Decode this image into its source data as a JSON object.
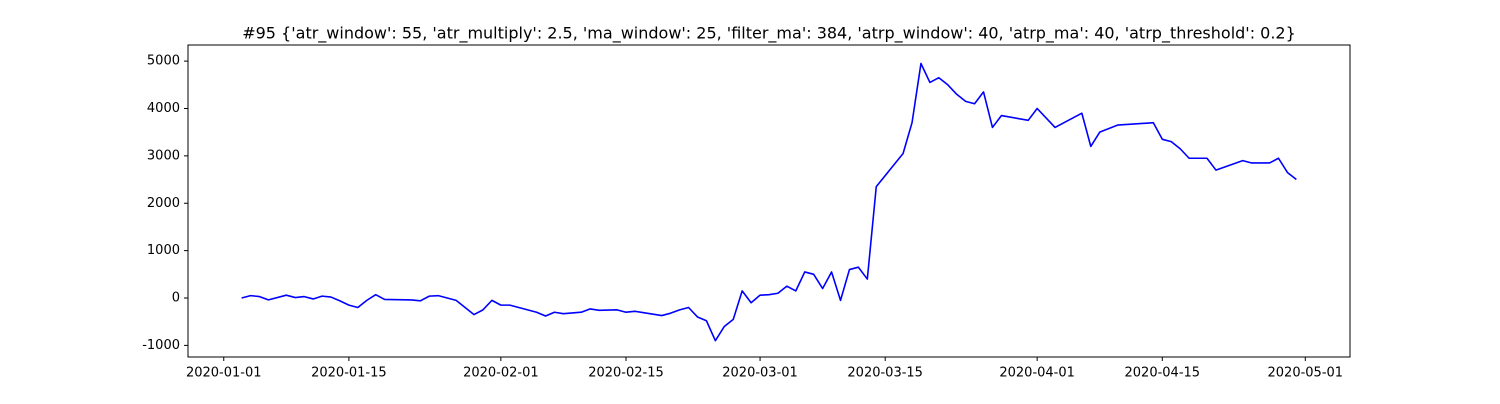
{
  "chart_data": {
    "type": "line",
    "title": "#95 {'atr_window': 55, 'atr_multiply': 2.5, 'ma_window': 25, 'filter_ma': 384, 'atrp_window': 40, 'atrp_ma': 40, 'atrp_threshold': 0.2}",
    "color": "#0000ff",
    "x": [
      "2020-01-03",
      "2020-01-04",
      "2020-01-05",
      "2020-01-06",
      "2020-01-08",
      "2020-01-09",
      "2020-01-10",
      "2020-01-11",
      "2020-01-12",
      "2020-01-13",
      "2020-01-14",
      "2020-01-15",
      "2020-01-16",
      "2020-01-17",
      "2020-01-18",
      "2020-01-19",
      "2020-01-22",
      "2020-01-23",
      "2020-01-24",
      "2020-01-25",
      "2020-01-26",
      "2020-01-27",
      "2020-01-28",
      "2020-01-29",
      "2020-01-30",
      "2020-01-31",
      "2020-02-01",
      "2020-02-02",
      "2020-02-05",
      "2020-02-06",
      "2020-02-07",
      "2020-02-08",
      "2020-02-10",
      "2020-02-11",
      "2020-02-12",
      "2020-02-14",
      "2020-02-15",
      "2020-02-16",
      "2020-02-19",
      "2020-02-20",
      "2020-02-21",
      "2020-02-22",
      "2020-02-23",
      "2020-02-24",
      "2020-02-25",
      "2020-02-26",
      "2020-02-27",
      "2020-02-28",
      "2020-02-29",
      "2020-03-01",
      "2020-03-02",
      "2020-03-03",
      "2020-03-04",
      "2020-03-05",
      "2020-03-06",
      "2020-03-07",
      "2020-03-08",
      "2020-03-09",
      "2020-03-10",
      "2020-03-11",
      "2020-03-12",
      "2020-03-13",
      "2020-03-14",
      "2020-03-17",
      "2020-03-18",
      "2020-03-19",
      "2020-03-20",
      "2020-03-21",
      "2020-03-22",
      "2020-03-23",
      "2020-03-24",
      "2020-03-25",
      "2020-03-26",
      "2020-03-27",
      "2020-03-28",
      "2020-03-31",
      "2020-04-01",
      "2020-04-02",
      "2020-04-03",
      "2020-04-04",
      "2020-04-06",
      "2020-04-07",
      "2020-04-08",
      "2020-04-10",
      "2020-04-14",
      "2020-04-15",
      "2020-04-16",
      "2020-04-17",
      "2020-04-18",
      "2020-04-20",
      "2020-04-21",
      "2020-04-24",
      "2020-04-25",
      "2020-04-27",
      "2020-04-28",
      "2020-04-29",
      "2020-04-30"
    ],
    "values": [
      0,
      50,
      30,
      -40,
      60,
      10,
      30,
      -20,
      40,
      20,
      -60,
      -150,
      -200,
      -50,
      70,
      -30,
      -40,
      -60,
      40,
      50,
      0,
      -50,
      -200,
      -350,
      -250,
      -50,
      -150,
      -150,
      -300,
      -380,
      -300,
      -330,
      -300,
      -230,
      -260,
      -250,
      -300,
      -280,
      -370,
      -320,
      -250,
      -200,
      -400,
      -480,
      -900,
      -600,
      -450,
      150,
      -100,
      60,
      70,
      100,
      250,
      150,
      550,
      500,
      200,
      550,
      -50,
      600,
      650,
      400,
      2350,
      3050,
      3700,
      4950,
      4550,
      4650,
      4500,
      4300,
      4150,
      4100,
      4350,
      3600,
      3850,
      3750,
      4000,
      3800,
      3600,
      3700,
      3900,
      3200,
      3500,
      3650,
      3700,
      3350,
      3300,
      3150,
      2950,
      2950,
      2700,
      2900,
      2850,
      2850,
      2950,
      2650,
      2500
    ],
    "xlim": [
      "2019-12-28",
      "2020-05-06"
    ],
    "xticks": [
      "2020-01-01",
      "2020-01-15",
      "2020-02-01",
      "2020-02-15",
      "2020-03-01",
      "2020-03-15",
      "2020-04-01",
      "2020-04-15",
      "2020-05-01"
    ],
    "ylim": [
      -1245,
      5340
    ],
    "yticks": [
      -1000,
      0,
      1000,
      2000,
      3000,
      4000,
      5000
    ],
    "grid": false
  }
}
